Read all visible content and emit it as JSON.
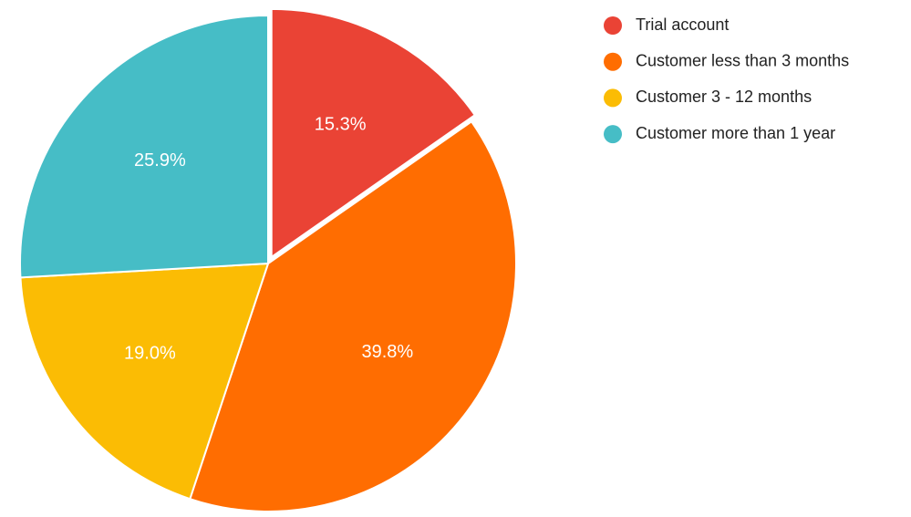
{
  "chart_data": {
    "type": "pie",
    "categories": [
      "Trial account",
      "Customer less than 3 months",
      "Customer 3 - 12 months",
      "Customer more than 1 year"
    ],
    "values": [
      15.3,
      39.8,
      19.0,
      25.9
    ],
    "value_labels": [
      "15.3%",
      "39.8%",
      "19.0%",
      "25.9%"
    ],
    "colors": [
      "#ea4335",
      "#ff6d01",
      "#fbbc04",
      "#46bdc6"
    ],
    "legend": "right"
  }
}
